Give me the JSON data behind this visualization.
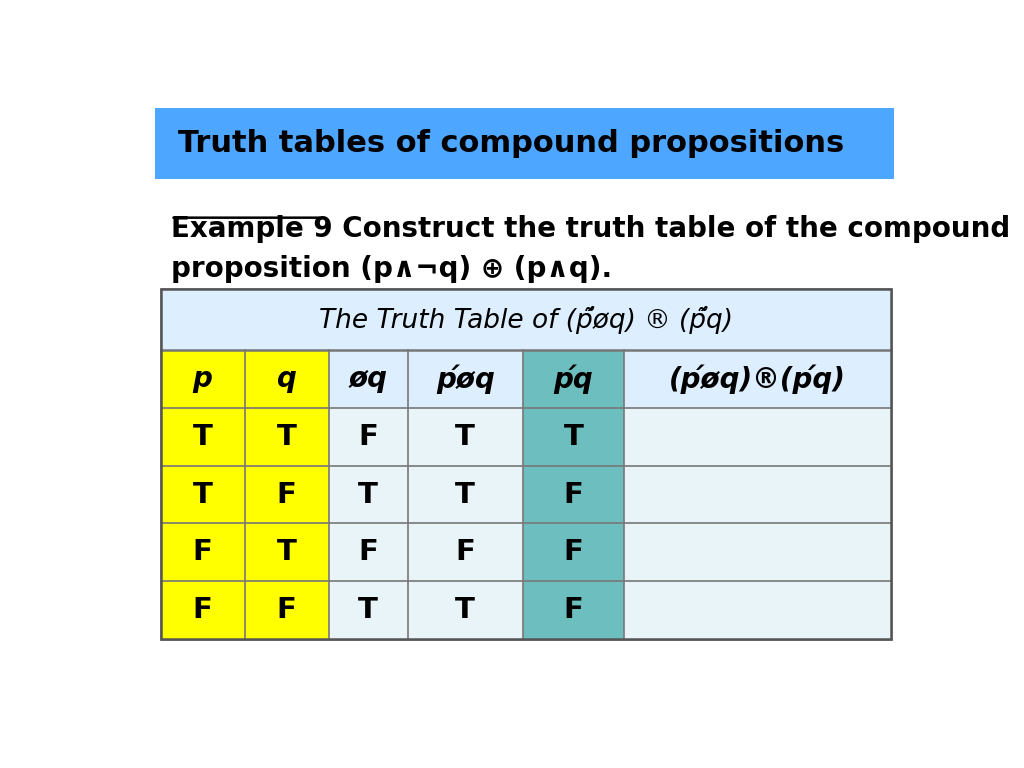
{
  "title_banner_text": "Truth tables of compound propositions",
  "title_banner_bg": "#4da6ff",
  "title_banner_text_color": "#000000",
  "example_line1": "Example 9 Construct the truth table of the compound",
  "example_line2_prefix": "proposition (p",
  "example_line2_suffix": "q).",
  "col_colors_header": [
    "#ffff00",
    "#ffff00",
    "#ddeeff",
    "#ddeeff",
    "#6dbfbf",
    "#ddeeff"
  ],
  "col_colors_rows": [
    [
      "#ffff00",
      "#ffff00",
      "#e8f4f8",
      "#e8f4f8",
      "#6dbfbf",
      "#e8f4f8"
    ],
    [
      "#ffff00",
      "#ffff00",
      "#e8f4f8",
      "#e8f4f8",
      "#6dbfbf",
      "#e8f4f8"
    ],
    [
      "#ffff00",
      "#ffff00",
      "#e8f4f8",
      "#e8f4f8",
      "#6dbfbf",
      "#e8f4f8"
    ],
    [
      "#ffff00",
      "#ffff00",
      "#e8f4f8",
      "#e8f4f8",
      "#6dbfbf",
      "#e8f4f8"
    ]
  ],
  "rows": [
    [
      "T",
      "T",
      "F",
      "T",
      "T",
      ""
    ],
    [
      "T",
      "F",
      "T",
      "T",
      "F",
      ""
    ],
    [
      "F",
      "T",
      "F",
      "F",
      "F",
      ""
    ],
    [
      "F",
      "F",
      "T",
      "T",
      "F",
      ""
    ]
  ],
  "table_bg": "#eef6ff",
  "table_title_bg": "#ddeeff",
  "bg_color": "#ffffff",
  "font_size_banner": 22,
  "font_size_example": 20,
  "font_size_table_title": 19,
  "font_size_table_header": 20,
  "font_size_table_data": 21
}
